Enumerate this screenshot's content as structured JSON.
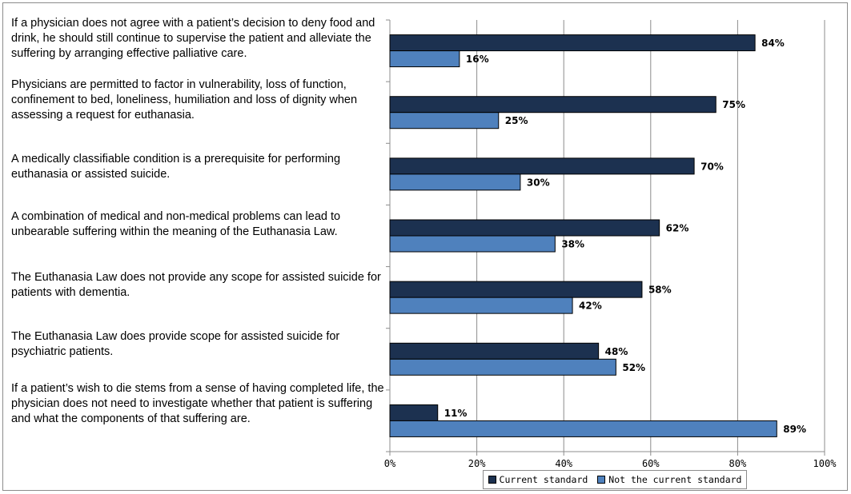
{
  "chart_data": {
    "type": "bar",
    "orientation": "horizontal",
    "categories": [
      "If a physician does not agree with a patient’s decision to deny food and drink, he should still continue to supervise the patient and alleviate the suffering by arranging effective palliative care.",
      "Physicians are permitted to factor in vulnerability, loss of function, confinement to bed, loneliness, humiliation and loss of dignity when assessing a request for euthanasia.",
      "A medically classifiable condition is a prerequisite for performing euthanasia or assisted suicide.",
      "A combination of medical and non-medical problems can lead to unbearable suffering within the meaning of the Euthanasia Law.",
      "The Euthanasia Law does not provide any scope for assisted suicide for patients with dementia.",
      "The Euthanasia Law does provide scope for assisted suicide for psychiatric patients.",
      "If a patient’s wish to die stems from a sense of having completed life, the physician does not need to investigate whether that patient is suffering and what the components of that suffering are."
    ],
    "series": [
      {
        "name": "Current standard",
        "color": "#1c3150",
        "values": [
          84,
          75,
          70,
          62,
          58,
          48,
          11
        ],
        "labels": [
          "84%",
          "75%",
          "70%",
          "62%",
          "58%",
          "48%",
          "11%"
        ]
      },
      {
        "name": "Not the current standard",
        "color": "#4f81bd",
        "values": [
          16,
          25,
          30,
          38,
          42,
          52,
          89
        ],
        "labels": [
          "16%",
          "25%",
          "30%",
          "38%",
          "42%",
          "52%",
          "89%"
        ]
      }
    ],
    "xlim": [
      0,
      100
    ],
    "xticks": [
      "0%",
      "20%",
      "40%",
      "60%",
      "80%",
      "100%"
    ],
    "grid": true,
    "legend_position": "bottom"
  }
}
